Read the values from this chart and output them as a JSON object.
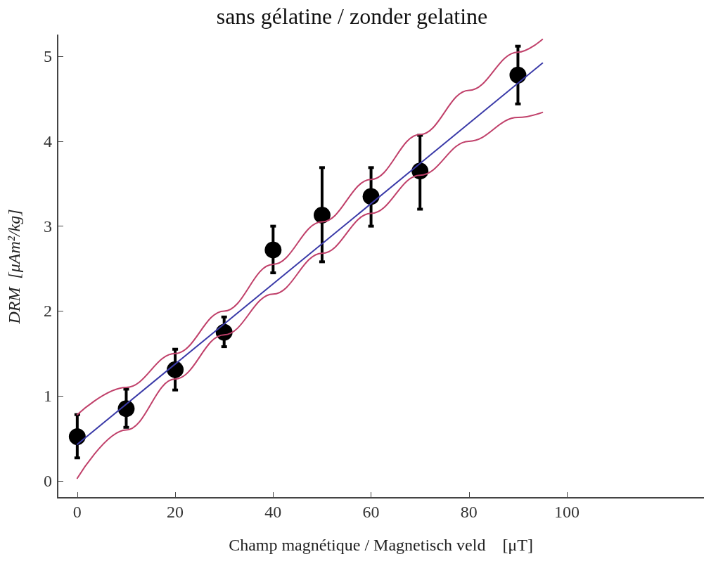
{
  "chart_data": {
    "type": "scatter",
    "title": "sans gélatine / zonder gelatine",
    "xlabel": "Champ magnétique / Magnetisch veld    [μT]",
    "ylabel": "DRM  [μAm²/kg]",
    "xlim": [
      -4,
      128
    ],
    "xticks": [
      0,
      20,
      40,
      60,
      80,
      100
    ],
    "ylim": [
      -0.2,
      5.25
    ],
    "yticks": [
      0,
      1,
      2,
      3,
      4,
      5
    ],
    "grid": false,
    "marker": "circle",
    "series": [
      {
        "type": "line",
        "color": "#c0406a",
        "marker": "none",
        "x": [
          0,
          10,
          20,
          30,
          40,
          50,
          60,
          70,
          80,
          90,
          95
        ],
        "values": [
          0.78,
          1.1,
          1.5,
          2.0,
          2.55,
          3.05,
          3.55,
          4.08,
          4.6,
          5.05,
          5.2
        ]
      },
      {
        "type": "line",
        "color": "#c0406a",
        "marker": "none",
        "x": [
          0,
          10,
          20,
          30,
          40,
          50,
          60,
          70,
          80,
          90,
          95
        ],
        "values": [
          0.03,
          0.6,
          1.2,
          1.72,
          2.2,
          2.68,
          3.15,
          3.6,
          4.0,
          4.28,
          4.34
        ]
      },
      {
        "type": "line",
        "color": "#3a3aa8",
        "marker": "none",
        "x": [
          0,
          95
        ],
        "values": [
          0.43,
          4.92
        ]
      },
      {
        "color": "#000000",
        "x": [
          0,
          10,
          20,
          30,
          40,
          50,
          60,
          70,
          90
        ],
        "values": [
          0.52,
          0.85,
          1.31,
          1.75,
          2.72,
          3.13,
          3.35,
          3.65,
          4.78
        ],
        "errors": [
          [
            0.27,
            0.78
          ],
          [
            0.63,
            1.08
          ],
          [
            1.07,
            1.55
          ],
          [
            1.58,
            1.93
          ],
          [
            2.45,
            3.0
          ],
          [
            2.58,
            3.69
          ],
          [
            3.0,
            3.69
          ],
          [
            3.2,
            4.07
          ],
          [
            4.44,
            5.12
          ]
        ]
      }
    ]
  }
}
